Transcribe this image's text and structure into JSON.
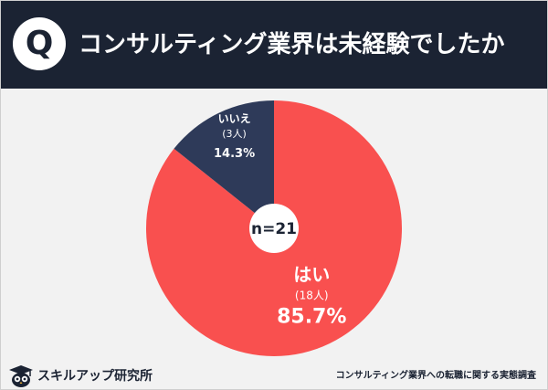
{
  "header": {
    "q_label": "Q",
    "title": "コンサルティング業界は未経験でしたか"
  },
  "chart_data": {
    "type": "pie",
    "center_label": "n=21",
    "slices": [
      {
        "label": "はい",
        "count_label": "(18人)",
        "count": 18,
        "percent_label": "85.7%",
        "value": 85.7,
        "color": "#f9504f"
      },
      {
        "label": "いいえ",
        "count_label": "(3人)",
        "count": 3,
        "percent_label": "14.3%",
        "value": 14.3,
        "color": "#2e3a59"
      }
    ]
  },
  "footer": {
    "brand": "スキルアップ研究所",
    "source": "コンサルティング業界への転職に関する実態調査"
  },
  "colors": {
    "header_bg": "#1b2333",
    "background": "#f2f2f2",
    "yes": "#f9504f",
    "no": "#2e3a59"
  }
}
